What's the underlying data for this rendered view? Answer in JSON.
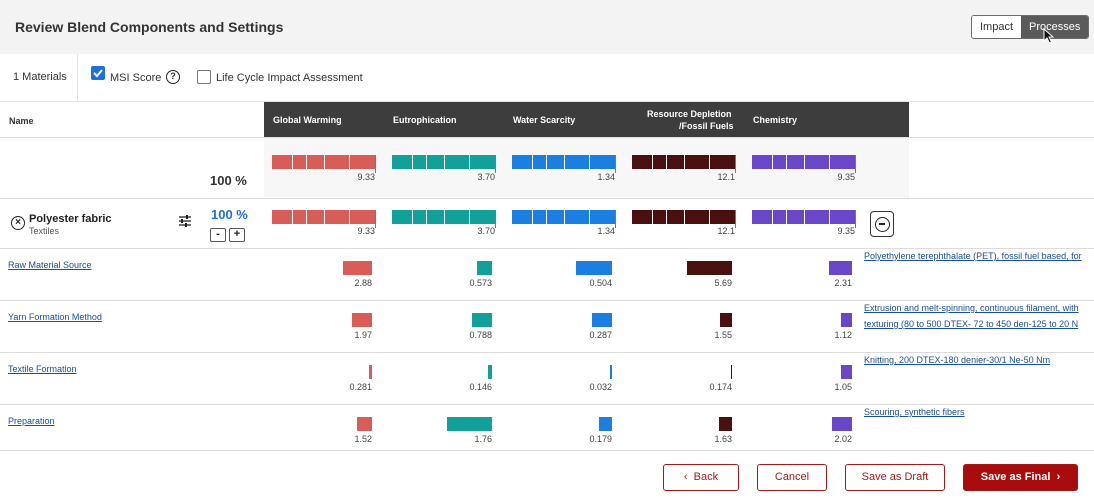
{
  "header": {
    "title": "Review Blend Components and Settings",
    "toggle_impact": "Impact",
    "toggle_processes": "Processes"
  },
  "options": {
    "materials_count": "1 Materials",
    "msi_score_label": "MSI Score",
    "msi_score_checked": true,
    "help_glyph": "?",
    "lca_label": "Life Cycle Impact Assessment",
    "lca_checked": false
  },
  "table": {
    "name_header": "Name",
    "columns": [
      {
        "label": "Global Warming",
        "color": "#d85c58"
      },
      {
        "label": "Eutrophication",
        "color": "#12a09b"
      },
      {
        "label": "Water Scarcity",
        "color": "#1a7fe0"
      },
      {
        "label_line1": "Resource Depletion",
        "label_line2": "/Fossil Fuels",
        "color": "#4a0f0f"
      },
      {
        "label": "Chemistry",
        "color": "#6a47c8"
      }
    ],
    "total": {
      "percent": "100 %",
      "values": [
        "9.33",
        "3.70",
        "1.34",
        "12.1",
        "9.35"
      ]
    },
    "material": {
      "name": "Polyester fabric",
      "category": "Textiles",
      "percent": "100 %",
      "minus_label": "-",
      "plus_label": "+",
      "values": [
        "9.33",
        "3.70",
        "1.34",
        "12.1",
        "9.35"
      ]
    },
    "processes": [
      {
        "name": "Raw Material Source",
        "values": [
          "2.88",
          "0.573",
          "0.504",
          "5.69",
          "2.31"
        ],
        "description_lines": [
          "Polyethylene terephthalate (PET), fossil fuel based, for"
        ]
      },
      {
        "name": "Yarn Formation Method",
        "values": [
          "1.97",
          "0.788",
          "0.287",
          "1.55",
          "1.12"
        ],
        "description_lines": [
          "Extrusion and melt-spinning, continuous filament, with",
          "texturing (80 to 500 DTEX- 72 to 450 den-125 to 20 N"
        ]
      },
      {
        "name": "Textile Formation",
        "values": [
          "0.281",
          "0.146",
          "0.032",
          "0.174",
          "1.05"
        ],
        "description_lines": [
          "Knitting, 200 DTEX-180 denier-30/1 Ne-50 Nm"
        ]
      },
      {
        "name": "Preparation",
        "values": [
          "1.52",
          "1.76",
          "0.179",
          "1.63",
          "2.02"
        ],
        "description_lines": [
          "Scouring, synthetic fibers"
        ]
      }
    ]
  },
  "footer": {
    "back_label": "Back",
    "back_glyph": "‹",
    "cancel_label": "Cancel",
    "draft_label": "Save as Draft",
    "final_label": "Save as Final",
    "final_glyph": "›"
  }
}
